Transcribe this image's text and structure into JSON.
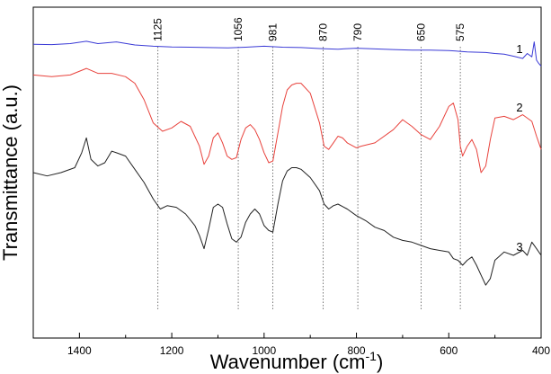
{
  "chart_data": {
    "type": "line",
    "title": "",
    "xlabel": "Wavenumber (cm",
    "xlabel_sup": "-1",
    "xlabel_close": ")",
    "ylabel": "Transmittance (a.u.)",
    "xlim": [
      1500,
      400
    ],
    "ylim": [
      0,
      100
    ],
    "x_ticks": [
      "1400",
      "1200",
      "1000",
      "800",
      "600",
      "400"
    ],
    "x_tick_values": [
      1400,
      1200,
      1000,
      800,
      600,
      400
    ],
    "annotations": [
      {
        "label": "1125",
        "x": 1230
      },
      {
        "label": "1056",
        "x": 1056
      },
      {
        "label": "981",
        "x": 981
      },
      {
        "label": "870",
        "x": 872
      },
      {
        "label": "790",
        "x": 797
      },
      {
        "label": "650",
        "x": 660
      },
      {
        "label": "575",
        "x": 575
      }
    ],
    "series": [
      {
        "name": "1",
        "color": "#3b3bd6",
        "x": [
          1500,
          1460,
          1420,
          1385,
          1360,
          1320,
          1280,
          1240,
          1200,
          1160,
          1120,
          1080,
          1040,
          1000,
          960,
          920,
          880,
          840,
          800,
          760,
          720,
          680,
          640,
          600,
          560,
          520,
          500,
          480,
          460,
          440,
          430,
          420,
          415,
          410,
          405,
          400
        ],
        "y": [
          88.8,
          88.7,
          89.0,
          89.7,
          89.0,
          89.5,
          88.6,
          88.2,
          88.0,
          87.9,
          87.8,
          87.7,
          87.9,
          88.2,
          87.9,
          87.8,
          87.5,
          87.3,
          87.6,
          87.4,
          87.2,
          87.0,
          87.0,
          86.9,
          86.5,
          86.3,
          86.0,
          85.8,
          85.2,
          84.5,
          86.0,
          85.0,
          89.5,
          84.0,
          83.0,
          82.2
        ]
      },
      {
        "name": "2",
        "color": "#e8423c",
        "x": [
          1500,
          1460,
          1420,
          1385,
          1360,
          1330,
          1300,
          1280,
          1260,
          1240,
          1220,
          1200,
          1180,
          1160,
          1140,
          1130,
          1120,
          1110,
          1100,
          1090,
          1080,
          1070,
          1060,
          1050,
          1040,
          1030,
          1020,
          1010,
          1000,
          990,
          981,
          970,
          960,
          950,
          940,
          930,
          920,
          900,
          880,
          870,
          860,
          850,
          840,
          830,
          820,
          800,
          790,
          760,
          720,
          700,
          680,
          660,
          640,
          620,
          600,
          590,
          580,
          575,
          570,
          560,
          550,
          540,
          530,
          520,
          510,
          500,
          480,
          460,
          440,
          420,
          410,
          400
        ],
        "y": [
          79.5,
          79.0,
          79.5,
          81.5,
          80.0,
          80.0,
          79.0,
          77.0,
          72.0,
          65.0,
          62.5,
          63.5,
          65.5,
          64.0,
          58.0,
          52.5,
          55.0,
          60.5,
          62.0,
          59.0,
          55.0,
          54.0,
          54.5,
          60.0,
          63.5,
          64.5,
          63.0,
          60.0,
          56.0,
          53.0,
          53.5,
          62.0,
          70.0,
          75.0,
          76.5,
          77.0,
          77.0,
          74.0,
          65.0,
          58.0,
          57.0,
          59.0,
          61.0,
          60.5,
          59.0,
          57.5,
          58.0,
          59.0,
          63.0,
          66.0,
          64.0,
          61.5,
          60.0,
          64.0,
          70.0,
          71.0,
          66.0,
          58.0,
          55.0,
          58.0,
          60.0,
          57.0,
          50.0,
          52.0,
          60.0,
          66.5,
          67.0,
          66.0,
          67.5,
          65.5,
          61.0,
          57.0
        ]
      },
      {
        "name": "3",
        "color": "#222222",
        "x": [
          1500,
          1470,
          1440,
          1410,
          1395,
          1385,
          1375,
          1360,
          1345,
          1330,
          1320,
          1300,
          1280,
          1260,
          1240,
          1225,
          1210,
          1190,
          1170,
          1150,
          1140,
          1130,
          1120,
          1110,
          1100,
          1090,
          1080,
          1070,
          1060,
          1050,
          1040,
          1030,
          1020,
          1010,
          1000,
          990,
          981,
          970,
          960,
          950,
          940,
          930,
          920,
          900,
          880,
          870,
          860,
          850,
          840,
          820,
          800,
          780,
          760,
          740,
          720,
          700,
          680,
          660,
          640,
          620,
          600,
          590,
          580,
          570,
          560,
          550,
          540,
          530,
          520,
          510,
          500,
          480,
          460,
          440,
          430,
          420,
          410,
          400
        ],
        "y": [
          50.0,
          49.0,
          50.0,
          51.5,
          56.0,
          60.5,
          54.0,
          52.0,
          53.0,
          56.5,
          56.0,
          55.0,
          51.0,
          47.0,
          42.0,
          39.0,
          40.0,
          39.5,
          37.5,
          34.0,
          31.0,
          27.0,
          33.0,
          39.5,
          40.5,
          39.5,
          34.5,
          30.0,
          29.0,
          30.5,
          35.0,
          37.5,
          39.0,
          37.5,
          34.0,
          32.5,
          32.0,
          40.5,
          47.5,
          50.5,
          51.5,
          51.5,
          51.0,
          48.5,
          44.5,
          40.5,
          39.0,
          40.0,
          40.5,
          39.0,
          37.0,
          35.5,
          33.5,
          32.5,
          30.5,
          29.5,
          29.0,
          28.0,
          27.0,
          26.5,
          26.0,
          24.0,
          23.5,
          22.0,
          23.5,
          24.5,
          22.0,
          19.0,
          16.0,
          18.0,
          23.5,
          26.0,
          25.0,
          26.5,
          25.0,
          29.0,
          27.0,
          25.0
        ]
      }
    ],
    "series_labels": [
      {
        "text": "1",
        "series": 0
      },
      {
        "text": "2",
        "series": 1
      },
      {
        "text": "3",
        "series": 2
      }
    ],
    "grid": false,
    "legend": "none"
  }
}
